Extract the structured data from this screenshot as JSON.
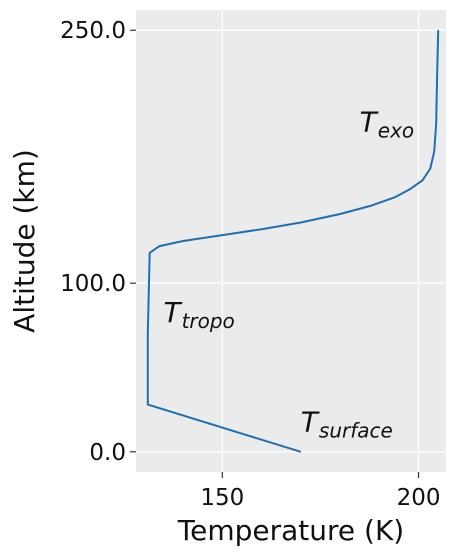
{
  "chart_data": {
    "type": "line",
    "xlabel": "Temperature (K)",
    "ylabel": "Altitude (km)",
    "xlim": [
      128,
      207
    ],
    "ylim": [
      -12,
      262
    ],
    "xticks": [
      150,
      200
    ],
    "xtick_labels": [
      "150",
      "200"
    ],
    "yticks": [
      0,
      100,
      250
    ],
    "ytick_labels": [
      "0.0",
      "100.0",
      "250.0"
    ],
    "grid": true,
    "background": "#ebebeb",
    "grid_color": "#ffffff",
    "line_color": "#1f6fb2",
    "series": [
      {
        "x": [
          170,
          131,
          131,
          131.5,
          134,
          140,
          150,
          160,
          170,
          180,
          188,
          194,
          198,
          201,
          203,
          204,
          204.5,
          204.7,
          205
        ],
        "y": [
          0,
          28,
          70,
          118,
          122,
          125,
          128.5,
          132,
          136,
          141,
          146,
          151,
          156,
          161,
          168,
          178,
          195,
          220,
          250
        ]
      }
    ],
    "annotations": [
      {
        "name": "t-exo",
        "main": "T",
        "sub": "exo",
        "x": 185,
        "y": 190
      },
      {
        "name": "t-tropo",
        "main": "T",
        "sub": "tropo",
        "x": 135,
        "y": 77
      },
      {
        "name": "t-surface",
        "main": "T",
        "sub": "surface",
        "x": 170,
        "y": 12
      }
    ]
  }
}
